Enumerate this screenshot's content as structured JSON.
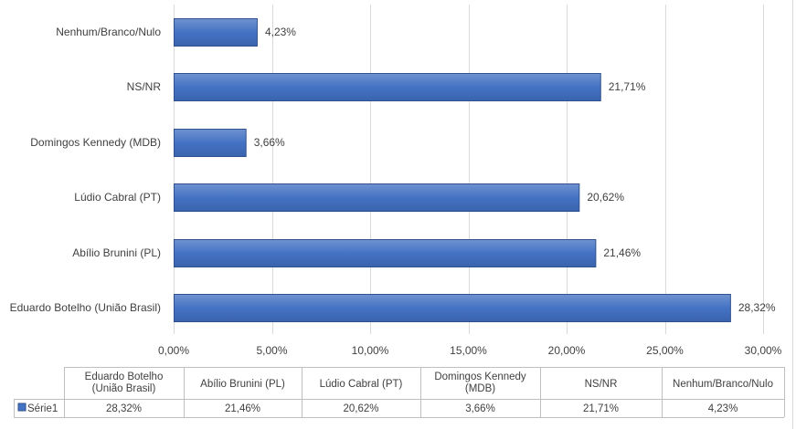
{
  "chart_data": {
    "type": "bar",
    "orientation": "horizontal",
    "categories": [
      "Eduardo Botelho (União Brasil)",
      "Abílio Brunini (PL)",
      "Lúdio Cabral (PT)",
      "Domingos Kennedy (MDB)",
      "NS/NR",
      "Nenhum/Branco/Nulo"
    ],
    "series": [
      {
        "name": "Série1",
        "values": [
          28.32,
          21.46,
          20.62,
          3.66,
          21.71,
          4.23
        ],
        "value_labels": [
          "28,32%",
          "21,46%",
          "20,62%",
          "3,66%",
          "21,71%",
          "4,23%"
        ],
        "color": "#4472c4"
      }
    ],
    "xlim": [
      0,
      30
    ],
    "xticks": [
      0,
      5,
      10,
      15,
      20,
      25,
      30
    ],
    "xtick_labels": [
      "0,00%",
      "5,00%",
      "10,00%",
      "15,00%",
      "20,00%",
      "25,00%",
      "30,00%"
    ],
    "grid": true,
    "data_table": {
      "columns": [
        "Eduardo Botelho (União Brasil)",
        "Abílio Brunini (PL)",
        "Lúdio Cabral (PT)",
        "Domingos Kennedy (MDB)",
        "NS/NR",
        "Nenhum/Branco/Nulo"
      ],
      "row_label": "Série1",
      "row_values": [
        "28,32%",
        "21,46%",
        "20,62%",
        "3,66%",
        "21,71%",
        "4,23%"
      ]
    }
  }
}
